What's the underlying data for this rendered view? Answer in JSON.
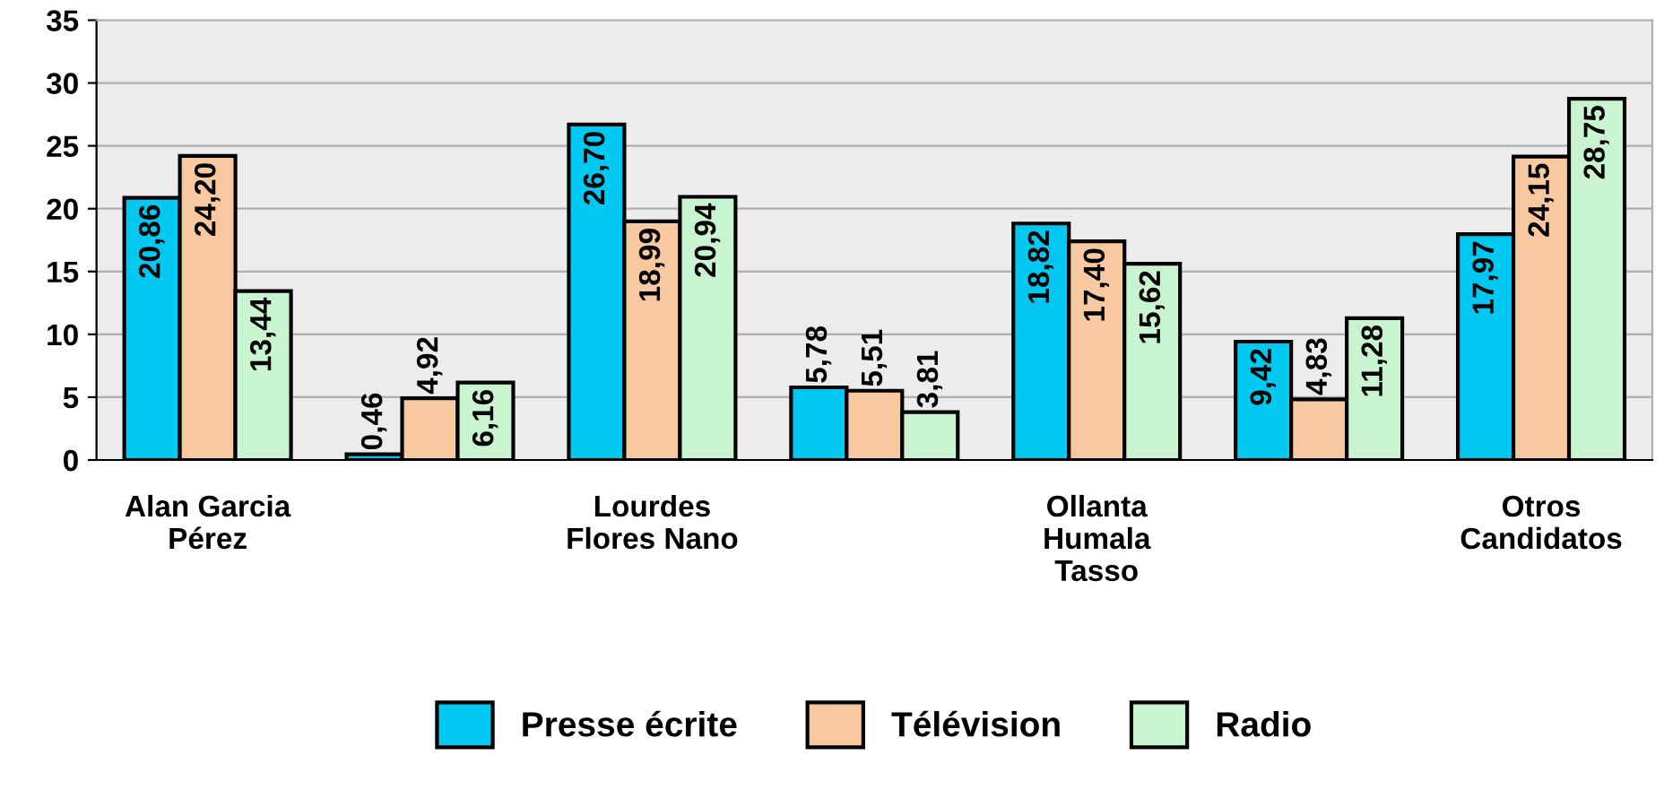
{
  "chart_data": {
    "type": "bar",
    "categories": [
      "Alan Garcia\nPérez",
      null,
      "Lourdes\nFlores Nano",
      null,
      "Ollanta\nHumala\nTasso",
      null,
      "Otros\nCandidatos"
    ],
    "series": [
      {
        "name": "Presse écrite",
        "color": "#00c8f0",
        "values": [
          20.86,
          0.46,
          26.7,
          5.78,
          18.82,
          9.42,
          17.97
        ],
        "value_labels": [
          "20,86",
          "0,46",
          "26,70",
          "5,78",
          "18,82",
          "9,42",
          "17,97"
        ]
      },
      {
        "name": "Télévision",
        "color": "#f8c8a0",
        "values": [
          24.2,
          4.92,
          18.99,
          5.51,
          17.4,
          4.83,
          24.15
        ],
        "value_labels": [
          "24,20",
          "4,92",
          "18,99",
          "5,51",
          "17,40",
          "4,83",
          "24,15"
        ]
      },
      {
        "name": "Radio",
        "color": "#c8f5d0",
        "values": [
          13.44,
          6.16,
          20.94,
          3.81,
          15.62,
          11.28,
          28.75
        ],
        "value_labels": [
          "13,44",
          "6,16",
          "20,94",
          "3,81",
          "15,62",
          "11,28",
          "28,75"
        ]
      }
    ],
    "ylim": [
      0,
      35
    ],
    "yticks": [
      0,
      5,
      10,
      15,
      20,
      25,
      30,
      35
    ],
    "grid": "y",
    "legend": "bottom"
  }
}
